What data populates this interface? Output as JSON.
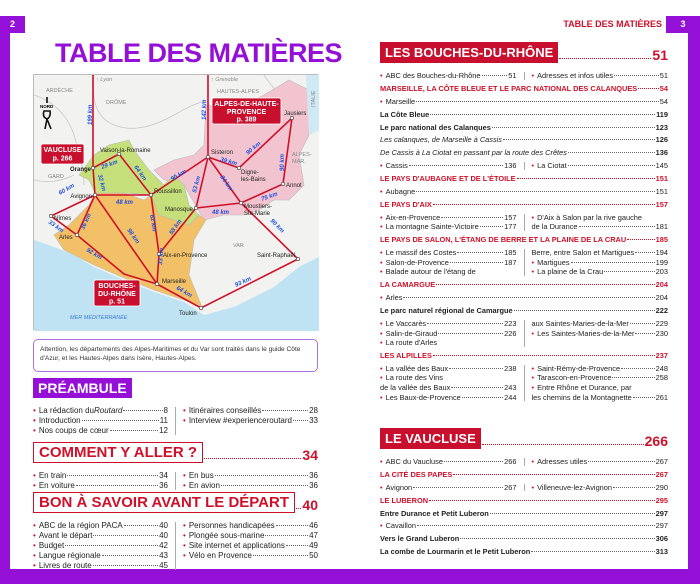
{
  "header": {
    "left_page": "2",
    "right_page": "3",
    "running_head": "TABLE DES MATIÈRES",
    "title": "TABLE DES MATIÈRES"
  },
  "colors": {
    "purple": "#9510d6",
    "red": "#d0102a"
  },
  "map": {
    "places": {
      "orange": "Orange",
      "vaison": "Vaison-la-Romaine",
      "avignon": "Avignon",
      "nimes": "Nîmes",
      "arles": "Arles",
      "roussillon": "Roussillon",
      "aix": "Aix-en-Provence",
      "marseille": "Marseille",
      "toulon": "Toulon",
      "manosque": "Manosque",
      "sisteron": "Sisteron",
      "digne1": "Digne-",
      "digne2": "les-Bains",
      "jausiers": "Jausiers",
      "annot": "Annot",
      "moustiers1": "Moustiers-",
      "moustiers2": "Ste-Marie",
      "saintraphael": "Saint-Raphaël",
      "lyon": "↑ Lyon",
      "grenoble": "↑ Grenoble"
    },
    "areas": {
      "ardeche": "ARDÈCHE",
      "drome": "DRÔME",
      "hautesalpes": "HAUTES-ALPES",
      "italie": "ITALIE",
      "alpesmar1": "ALPES-",
      "alpesmar2": "MAR.",
      "gard": "GARD",
      "var": "VAR",
      "mer": "MER MÉDITERRANÉE",
      "nord": "NORD"
    },
    "tags": {
      "vaucluse": "VAUCLUSE",
      "vaucluse_page": "p. 266",
      "ahp1": "ALPES-DE-HAUTE-",
      "ahp2": "PROVENCE",
      "ahp_page": "p. 389",
      "bdr1": "BOUCHES-",
      "bdr2": "DU-RHÔNE",
      "bdr_page": "p. 51"
    },
    "distances": {
      "lyon_orange": "199 km",
      "grenoble_sisteron": "142 km",
      "orange_vaison": "29 km",
      "orange_avignon": "32 km",
      "vaison_roussillon": "64 km",
      "avignon_nimes": "60 km",
      "avignon_roussillon": "48 km",
      "nimes_arles": "33 km",
      "avignon_arles": "36 km",
      "avignon_marseille": "98 km",
      "arles_marseille": "92 km",
      "roussillon_aix": "62 km",
      "aix_manosque": "58 km",
      "aix_marseille": "33 km",
      "marseille_toulon": "64 km",
      "roussillon_sisteron": "90 km",
      "sisteron_manosque": "53 km",
      "sisteron_moustiers": "84 km",
      "manosque_moustiers": "48 km",
      "sisteron_digne": "39 km",
      "digne_jausiers": "90 km",
      "jausiers_annot": "90 km",
      "annot_moustiers": "75 km",
      "moustiers_saintraphael": "90 km",
      "saintraphael_toulon": "93 km"
    }
  },
  "note": "Attention, les départements des Alpes-Maritimes et du Var sont traités dans le guide Côte d'Azur, et les Hautes-Alpes dans Isère, Hautes-Alpes.",
  "left": {
    "preambule": [
      {
        "type": "h1",
        "style": "filled-purple",
        "label": "PRÉAMBULE"
      },
      {
        "type": "cols",
        "left": [
          {
            "label": "La rédaction du ",
            "em": "Routard",
            "page": "8"
          },
          {
            "label": "Introduction",
            "page": "11"
          },
          {
            "label": "Nos coups de cœur",
            "page": "12"
          }
        ],
        "right": [
          {
            "label": "Itinéraires conseillés",
            "page": "28"
          },
          {
            "label": "Interview #experienceroutard",
            "page": "33"
          }
        ]
      }
    ],
    "comment": [
      {
        "type": "h1",
        "style": "outline-red",
        "label": "COMMENT Y ALLER ?",
        "page": "34"
      },
      {
        "type": "cols",
        "left": [
          {
            "label": "En train",
            "page": "34"
          },
          {
            "label": "En voiture",
            "page": "36"
          }
        ],
        "right": [
          {
            "label": "En bus",
            "page": "36"
          },
          {
            "label": "En avion",
            "page": "36"
          }
        ]
      }
    ],
    "bon": [
      {
        "type": "h1",
        "style": "outline-red",
        "label": "BON À SAVOIR AVANT LE DÉPART",
        "page": "40"
      },
      {
        "type": "cols",
        "left": [
          {
            "label": "ABC de la région PACA",
            "page": "40"
          },
          {
            "label": "Avant le départ",
            "page": "40"
          },
          {
            "label": "Budget",
            "page": "42"
          },
          {
            "label": "Langue régionale",
            "page": "43"
          },
          {
            "label": "Livres de route",
            "page": "45"
          }
        ],
        "right": [
          {
            "label": "Personnes handicapées",
            "page": "46"
          },
          {
            "label": "Plongée sous-marine",
            "page": "47"
          },
          {
            "label": "Site internet et applications",
            "page": "49"
          },
          {
            "label": "Vélo en Provence",
            "page": "50"
          }
        ]
      }
    ]
  },
  "right": {
    "bdr_head": [
      {
        "type": "h1",
        "style": "filled-red",
        "label": "LES BOUCHES-DU-RHÔNE",
        "page": "51"
      }
    ],
    "bdr": [
      {
        "type": "cols",
        "left": [
          {
            "label": "ABC des Bouches-du-Rhône",
            "page": "51"
          }
        ],
        "right": [
          {
            "label": "Adresses et infos utiles",
            "page": "51"
          }
        ]
      },
      {
        "type": "h2",
        "label": "MARSEILLE, LA CÔTE BLEUE ET LE PARC NATIONAL DES CALANQUES",
        "page": "54"
      },
      {
        "type": "item",
        "label": "Marseille",
        "page": "54"
      },
      {
        "type": "bold",
        "label": "La Côte Bleue",
        "page": "119"
      },
      {
        "type": "bold",
        "label": "Le parc national des Calanques",
        "page": "123"
      },
      {
        "type": "italic",
        "label": "Les calanques, de Marseille à Cassis",
        "page": "126"
      },
      {
        "type": "italic",
        "label": "De Cassis à La Ciotat en passant par la route des Crêtes",
        "page": "136"
      },
      {
        "type": "cols",
        "left": [
          {
            "label": "Cassis",
            "page": "136"
          }
        ],
        "right": [
          {
            "label": "La Ciotat",
            "page": "145"
          }
        ]
      },
      {
        "type": "h2",
        "label": "LE PAYS D'AUBAGNE ET DE L'ÉTOILE",
        "page": "151"
      },
      {
        "type": "item",
        "label": "Aubagne",
        "page": "151"
      },
      {
        "type": "h2",
        "label": "LE PAYS D'AIX",
        "page": "157"
      },
      {
        "type": "cols",
        "left": [
          {
            "label": "Aix-en-Provence",
            "page": "157"
          },
          {
            "label": "La montagne Sainte-Victoire",
            "page": "177"
          }
        ],
        "right": [
          {
            "label": "D'Aix à Salon par la rive gauche"
          },
          {
            "label": "de la Durance",
            "page": "181",
            "bullet": false
          }
        ]
      },
      {
        "type": "h2",
        "label": "LE PAYS DE SALON, L'ÉTANG DE BERRE ET LA PLAINE DE LA CRAU",
        "page": "185"
      },
      {
        "type": "cols",
        "left": [
          {
            "label": "Le massif des Costes",
            "page": "185"
          },
          {
            "label": "Salon-de-Provence",
            "page": "187"
          },
          {
            "label": "Balade autour de l'étang de"
          }
        ],
        "right": [
          {
            "label": "Berre, entre Salon et Martigues",
            "page": "194",
            "bullet": false
          },
          {
            "label": "Martigues",
            "page": "199"
          },
          {
            "label": "La plaine de la Crau",
            "page": "203"
          }
        ]
      },
      {
        "type": "h2",
        "label": "LA CAMARGUE",
        "page": "204"
      },
      {
        "type": "item",
        "label": "Arles",
        "page": "204"
      },
      {
        "type": "bold",
        "label": "Le parc naturel régional de Camargue",
        "page": "222"
      },
      {
        "type": "cols",
        "left": [
          {
            "label": "Le Vaccarès",
            "page": "223"
          },
          {
            "label": "Salin-de-Giraud",
            "page": "226"
          },
          {
            "label": "La route d'Arles"
          }
        ],
        "right": [
          {
            "label": "aux Saintes-Maries-de-la-Mer",
            "page": "229",
            "bullet": false
          },
          {
            "label": "Les Saintes-Maries-de-la-Mer",
            "page": "230"
          }
        ]
      },
      {
        "type": "h2",
        "label": "LES ALPILLES",
        "page": "237"
      },
      {
        "type": "cols",
        "left": [
          {
            "label": "La vallée des Baux",
            "page": "238"
          },
          {
            "label": "La route des Vins"
          },
          {
            "label": "de la vallée des Baux",
            "page": "243",
            "bullet": false
          },
          {
            "label": "Les Baux-de-Provence",
            "page": "244"
          }
        ],
        "right": [
          {
            "label": "Saint-Rémy-de-Provence",
            "page": "248"
          },
          {
            "label": "Tarascon-en-Provence",
            "page": "258"
          },
          {
            "label": "Entre Rhône et Durance, par"
          },
          {
            "label": "les chemins de la Montagnette",
            "page": "261",
            "bullet": false
          }
        ]
      }
    ],
    "vaucluse": [
      {
        "type": "h1",
        "style": "filled-red",
        "label": "LE VAUCLUSE",
        "page": "266"
      },
      {
        "type": "cols",
        "left": [
          {
            "label": "ABC du Vaucluse",
            "page": "266"
          }
        ],
        "right": [
          {
            "label": "Adresses utiles",
            "page": "267"
          }
        ]
      },
      {
        "type": "h2",
        "label": "LA CITÉ DES PAPES",
        "page": "267"
      },
      {
        "type": "cols",
        "left": [
          {
            "label": "Avignon",
            "page": "267"
          }
        ],
        "right": [
          {
            "label": "Villeneuve-lez-Avignon",
            "page": "290"
          }
        ]
      },
      {
        "type": "h2",
        "label": "LE LUBERON",
        "page": "295"
      },
      {
        "type": "bold",
        "label": "Entre Durance et Petit Luberon",
        "page": "297"
      },
      {
        "type": "item",
        "label": "Cavaillon",
        "page": "297"
      },
      {
        "type": "bold",
        "label": "Vers le Grand Luberon",
        "page": "306"
      },
      {
        "type": "bold",
        "label": "La combe de Lourmarin et le Petit Luberon",
        "page": "313"
      }
    ]
  }
}
